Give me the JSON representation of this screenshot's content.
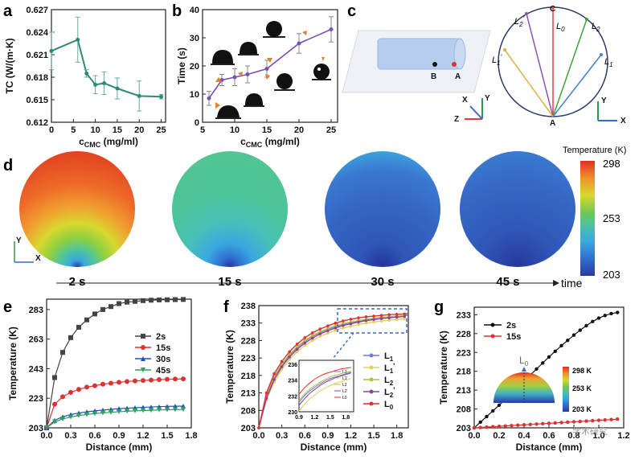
{
  "panel_labels": [
    "a",
    "b",
    "c",
    "d",
    "e",
    "f",
    "g"
  ],
  "chart_data": [
    {
      "id": "a",
      "type": "line",
      "xlabel_main": "c",
      "xlabel_sub": "CMC",
      "xlabel_unit": " (mg/ml)",
      "ylabel": "TC (W/(m·K)",
      "xlim": [
        0,
        26
      ],
      "ylim": [
        0.612,
        0.627
      ],
      "xticks": [
        "0",
        "5",
        "10",
        "15",
        "20",
        "25"
      ],
      "yticks": [
        "0.612",
        "0.615",
        "0.618",
        "0.621",
        "0.624",
        "0.627"
      ],
      "color": "#2e8b6e",
      "x": [
        0,
        6,
        8,
        10,
        12,
        15,
        20,
        25
      ],
      "y": [
        0.6215,
        0.623,
        0.6185,
        0.617,
        0.6172,
        0.6165,
        0.6155,
        0.6154
      ],
      "err": [
        0.0025,
        0.003,
        0.0005,
        0.0012,
        0.0015,
        0.0014,
        0.002,
        0.0003
      ]
    },
    {
      "id": "b",
      "type": "line",
      "xlabel_main": "c",
      "xlabel_sub": "CMC",
      "xlabel_unit": " (mg/ml)",
      "ylabel": "Time (s)",
      "xlim": [
        5,
        26
      ],
      "ylim": [
        0,
        40
      ],
      "xticks": [
        "5",
        "10",
        "15",
        "20",
        "25"
      ],
      "yticks": [
        "0",
        "10",
        "20",
        "30",
        "40"
      ],
      "color": "#7b4fb8",
      "x": [
        6,
        8,
        10,
        12,
        15,
        20,
        25
      ],
      "y": [
        8.5,
        15,
        16,
        17,
        19,
        28,
        33
      ],
      "err": [
        2.5,
        2,
        3,
        3,
        3,
        3.5,
        4.5
      ]
    },
    {
      "id": "e",
      "type": "line",
      "xlabel": "Distance (mm)",
      "ylabel": "Temperature (K)",
      "xlim": [
        0,
        1.8
      ],
      "ylim": [
        203,
        290
      ],
      "xticks": [
        "0.0",
        "0.3",
        "0.6",
        "0.9",
        "1.2",
        "1.5",
        "1.8"
      ],
      "yticks": [
        "203",
        "223",
        "243",
        "263",
        "283"
      ],
      "series": [
        {
          "name": "2s",
          "color": "#444444",
          "marker": "square",
          "values": [
            203,
            237,
            254,
            264,
            271,
            276,
            280,
            283,
            285,
            287,
            288,
            288.5,
            289,
            289.3,
            289.5,
            289.6,
            289.7,
            289.8
          ]
        },
        {
          "name": "15s",
          "color": "#e03030",
          "marker": "circle",
          "values": [
            203,
            219,
            224,
            227,
            229,
            230.5,
            231.5,
            232.5,
            233.2,
            233.8,
            234.3,
            234.7,
            235,
            235.3,
            235.6,
            235.8,
            236,
            236.1
          ]
        },
        {
          "name": "30s",
          "color": "#2050c0",
          "marker": "triangle",
          "values": [
            203,
            208,
            210.5,
            212,
            213,
            213.8,
            214.5,
            215,
            215.5,
            216,
            216.3,
            216.6,
            216.9,
            217.1,
            217.3,
            217.5,
            217.6,
            217.7
          ]
        },
        {
          "name": "45s",
          "color": "#30a060",
          "marker": "triangle-down",
          "values": [
            203,
            207,
            209,
            210.3,
            211.3,
            212,
            212.6,
            213.1,
            213.5,
            213.9,
            214.2,
            214.5,
            214.7,
            214.9,
            215.1,
            215.2,
            215.3,
            215.4
          ]
        }
      ],
      "x": [
        0.0,
        0.1,
        0.2,
        0.3,
        0.4,
        0.5,
        0.6,
        0.7,
        0.8,
        0.9,
        1.0,
        1.1,
        1.2,
        1.3,
        1.4,
        1.5,
        1.6,
        1.7
      ]
    },
    {
      "id": "f",
      "type": "line",
      "xlabel": "Distance (mm)",
      "ylabel": "Temperature (K)",
      "xlim": [
        0,
        1.95
      ],
      "ylim": [
        203,
        238
      ],
      "xticks": [
        "0.0",
        "0.3",
        "0.6",
        "0.9",
        "1.2",
        "1.5",
        "1.8"
      ],
      "yticks": [
        "203",
        "208",
        "213",
        "218",
        "223",
        "228",
        "233",
        "238"
      ],
      "x": [
        0,
        0.1,
        0.2,
        0.3,
        0.4,
        0.5,
        0.6,
        0.7,
        0.8,
        0.9,
        1.0,
        1.1,
        1.2,
        1.3,
        1.4,
        1.5,
        1.6,
        1.7,
        1.8,
        1.9
      ],
      "series": [
        {
          "name": "L1",
          "sup": "",
          "color": "#6a7fd0",
          "values": [
            203,
            212,
            217.5,
            221,
            223.8,
            226,
            227.8,
            229.2,
            230.3,
            231.2,
            232,
            232.6,
            233.1,
            233.5,
            233.9,
            234.2,
            234.4,
            234.6,
            234.8,
            235
          ]
        },
        {
          "name": "L1",
          "sup": "'",
          "color": "#e0d060",
          "values": [
            203,
            211,
            216,
            219.8,
            222.6,
            224.8,
            226.6,
            228,
            229.2,
            230.1,
            230.9,
            231.6,
            232.1,
            232.6,
            233,
            233.3,
            233.6,
            233.8,
            234,
            234.2
          ]
        },
        {
          "name": "L2",
          "sup": "",
          "color": "#b0c040",
          "values": [
            203,
            212.3,
            217.8,
            221.3,
            224,
            226.2,
            228,
            229.4,
            230.5,
            231.4,
            232.2,
            232.8,
            233.3,
            233.7,
            234.1,
            234.4,
            234.6,
            234.8,
            235,
            235.1
          ]
        },
        {
          "name": "L2",
          "sup": "'",
          "color": "#9040a0",
          "values": [
            203,
            211.5,
            216.8,
            220.5,
            223.3,
            225.5,
            227.3,
            228.7,
            229.9,
            230.8,
            231.6,
            232.3,
            232.8,
            233.3,
            233.7,
            234,
            234.3,
            234.5,
            234.7,
            234.9
          ]
        },
        {
          "name": "L0",
          "sup": "",
          "color": "#e03030",
          "values": [
            203,
            213,
            218.5,
            222,
            224.8,
            227,
            228.8,
            230.2,
            231.3,
            232.2,
            233,
            233.6,
            234.1,
            234.5,
            234.8,
            235,
            235.2,
            235.4,
            235.5,
            235.6
          ]
        }
      ],
      "inset": {
        "xticks": [
          "0.9",
          "1.2",
          "1.5",
          "1.8"
        ],
        "yticks": [
          "230",
          "232",
          "234",
          "236"
        ]
      }
    },
    {
      "id": "g",
      "type": "line",
      "xlabel": "Distance (mm)",
      "ylabel": "Temperature (K)",
      "xlim": [
        0,
        1.2
      ],
      "ylim": [
        203,
        235
      ],
      "xticks": [
        "0.0",
        "0.2",
        "0.4",
        "0.6",
        "0.8",
        "1.0",
        "1.2"
      ],
      "yticks": [
        "203",
        "208",
        "213",
        "218",
        "223",
        "228",
        "233"
      ],
      "x": [
        0,
        0.05,
        0.1,
        0.15,
        0.2,
        0.25,
        0.3,
        0.35,
        0.4,
        0.45,
        0.5,
        0.55,
        0.6,
        0.65,
        0.7,
        0.75,
        0.8,
        0.85,
        0.9,
        0.95,
        1.0,
        1.05,
        1.1,
        1.15
      ],
      "series": [
        {
          "name": "2s",
          "color": "#111111",
          "values": [
            203,
            204.5,
            206,
            207.5,
            209,
            210.6,
            212.2,
            213.8,
            215.4,
            217,
            218.6,
            220.2,
            221.8,
            223.3,
            224.8,
            226.2,
            227.6,
            228.9,
            230.1,
            231.2,
            232.1,
            232.8,
            233.3,
            233.6
          ]
        },
        {
          "name": "15s",
          "color": "#e03030",
          "values": [
            203,
            203.1,
            203.2,
            203.3,
            203.4,
            203.5,
            203.6,
            203.7,
            203.8,
            203.9,
            204,
            204.1,
            204.2,
            204.3,
            204.4,
            204.5,
            204.6,
            204.7,
            204.8,
            204.9,
            205,
            205.1,
            205.2,
            205.3
          ]
        }
      ],
      "inset": {
        "label": "L",
        "label_sub": "0",
        "scale": [
          "298 K",
          "253 K",
          "203 K"
        ]
      }
    }
  ],
  "panel_c": {
    "labels": {
      "A": "A",
      "B": "B",
      "C": "C"
    },
    "lines": [
      {
        "name": "L",
        "sub": "2",
        "sup": "'",
        "color": "#9050b0"
      },
      {
        "name": "L",
        "sub": "0",
        "sup": "",
        "color": "#e04040"
      },
      {
        "name": "L",
        "sub": "2",
        "sup": "",
        "color": "#40a040"
      },
      {
        "name": "L",
        "sub": "1",
        "sup": "'",
        "color": "#e0b040"
      },
      {
        "name": "L",
        "sub": "1",
        "sup": "",
        "color": "#4080d0"
      }
    ],
    "axes1": {
      "x": "X",
      "y": "Y",
      "z": "Z"
    },
    "axes2": {
      "x": "X",
      "y": "Y"
    }
  },
  "panel_d": {
    "times": [
      "2 s",
      "15 s",
      "30 s",
      "45 s"
    ],
    "time_label": "time",
    "colorbar_title": "Temperature (K)",
    "colorbar_ticks": [
      "298",
      "253",
      "203"
    ],
    "axes": {
      "x": "X",
      "y": "Y"
    }
  },
  "watermark": "学术研究"
}
